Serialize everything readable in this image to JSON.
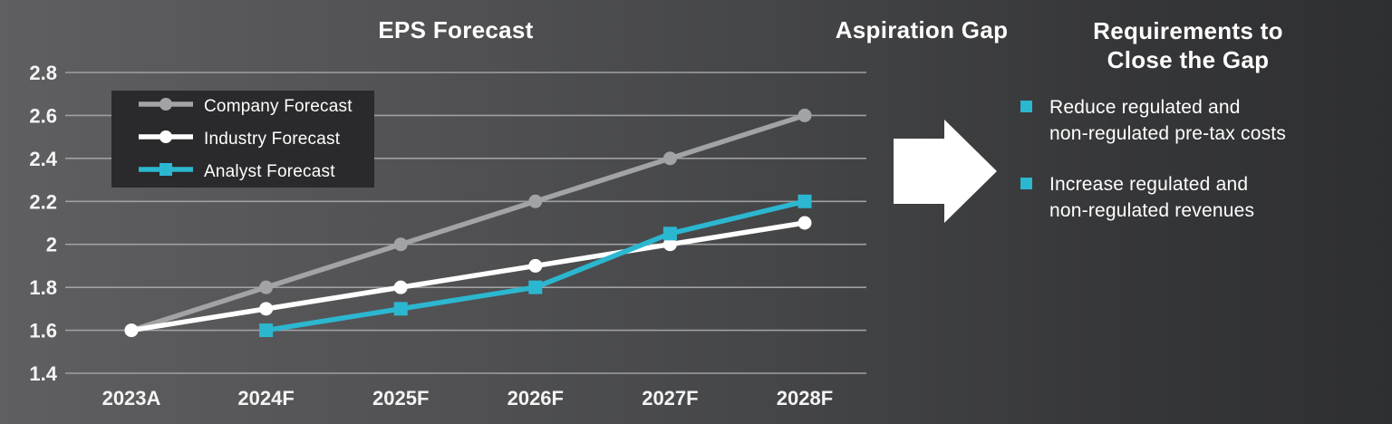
{
  "chart_data": {
    "type": "line",
    "title": "EPS Forecast",
    "categories": [
      "2023A",
      "2024F",
      "2025F",
      "2026F",
      "2027F",
      "2028F"
    ],
    "series": [
      {
        "name": "Company Forecast",
        "color": "#a2a3a5",
        "marker": "circle",
        "values": [
          1.6,
          1.8,
          2.0,
          2.2,
          2.4,
          2.6
        ]
      },
      {
        "name": "Industry Forecast",
        "color": "#ffffff",
        "marker": "circle",
        "values": [
          1.6,
          1.7,
          1.8,
          1.9,
          2.0,
          2.1
        ]
      },
      {
        "name": "Analyst Forecast",
        "color": "#2cb7d0",
        "marker": "square",
        "values": [
          null,
          1.6,
          1.7,
          1.8,
          2.05,
          2.2
        ]
      }
    ],
    "ylim": [
      1.4,
      2.8
    ],
    "yticks": [
      "2.8",
      "2.6",
      "2.4",
      "2.2",
      "2",
      "1.8",
      "1.6",
      "1.4"
    ],
    "grid": true,
    "legend_position": "upper-left-inside"
  },
  "aspiration_title": "Aspiration Gap",
  "requirements": {
    "title_line1": "Requirements to",
    "title_line2": "Close the Gap",
    "bullets": [
      {
        "lines": [
          "Reduce regulated and",
          "non-regulated pre-tax costs"
        ]
      },
      {
        "lines": [
          "Increase regulated and",
          "non-regulated revenues"
        ]
      }
    ]
  },
  "colors": {
    "background_left": "#5f5f61",
    "background_right": "#2e2f31",
    "gridline": "#9fa0a2",
    "text": "#ffffff",
    "legend_background": "#2a2a2c",
    "accent_cyan": "#2cb7d0",
    "arrow": "#ffffff"
  }
}
